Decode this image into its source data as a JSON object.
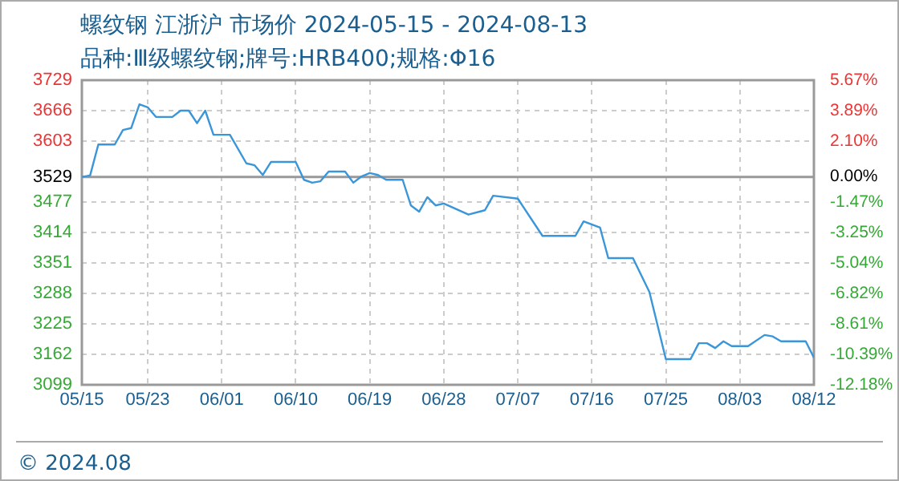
{
  "chart_data": {
    "type": "line",
    "title": "螺纹钢 江浙沪 市场价 2024-05-15 - 2024-08-13",
    "subtitle": "品种:Ⅲ级螺纹钢;牌号:HRB400;规格:Φ16",
    "annotations": [
      "© 2024.08"
    ],
    "x": [
      "2024-05-15",
      "2024-05-16",
      "2024-05-17",
      "2024-05-19",
      "2024-05-20",
      "2024-05-21",
      "2024-05-22",
      "2024-05-23",
      "2024-05-24",
      "2024-05-26",
      "2024-05-27",
      "2024-05-28",
      "2024-05-29",
      "2024-05-30",
      "2024-05-31",
      "2024-06-02",
      "2024-06-04",
      "2024-06-05",
      "2024-06-06",
      "2024-06-07",
      "2024-06-10",
      "2024-06-11",
      "2024-06-12",
      "2024-06-13",
      "2024-06-14",
      "2024-06-16",
      "2024-06-17",
      "2024-06-18",
      "2024-06-19",
      "2024-06-20",
      "2024-06-21",
      "2024-06-23",
      "2024-06-24",
      "2024-06-25",
      "2024-06-26",
      "2024-06-27",
      "2024-06-28",
      "2024-07-01",
      "2024-07-03",
      "2024-07-04",
      "2024-07-07",
      "2024-07-10",
      "2024-07-14",
      "2024-07-15",
      "2024-07-17",
      "2024-07-18",
      "2024-07-21",
      "2024-07-23",
      "2024-07-25",
      "2024-07-28",
      "2024-07-29",
      "2024-07-30",
      "2024-07-31",
      "2024-08-01",
      "2024-08-02",
      "2024-08-04",
      "2024-08-06",
      "2024-08-07",
      "2024-08-08",
      "2024-08-11",
      "2024-08-12"
    ],
    "series": [
      {
        "color": "#3a96d8",
        "values": [
          3529,
          3532,
          3596,
          3596,
          3626,
          3630,
          3679,
          3673,
          3653,
          3653,
          3666,
          3666,
          3640,
          3666,
          3616,
          3616,
          3557,
          3553,
          3533,
          3560,
          3560,
          3523,
          3517,
          3520,
          3540,
          3540,
          3517,
          3530,
          3537,
          3533,
          3523,
          3523,
          3470,
          3457,
          3487,
          3470,
          3474,
          3451,
          3460,
          3490,
          3484,
          3407,
          3407,
          3437,
          3424,
          3361,
          3361,
          3291,
          3152,
          3152,
          3185,
          3185,
          3175,
          3189,
          3179,
          3179,
          3202,
          3199,
          3189,
          3189,
          3155
        ]
      }
    ],
    "xlim": [
      "2024-05-15",
      "2024-08-12"
    ],
    "xticks": [
      {
        "value": "2024-05-15",
        "label": "05/15"
      },
      {
        "value": "2024-05-23",
        "label": "05/23"
      },
      {
        "value": "2024-06-01",
        "label": "06/01"
      },
      {
        "value": "2024-06-10",
        "label": "06/10"
      },
      {
        "value": "2024-06-19",
        "label": "06/19"
      },
      {
        "value": "2024-06-28",
        "label": "06/28"
      },
      {
        "value": "2024-07-07",
        "label": "07/07"
      },
      {
        "value": "2024-07-16",
        "label": "07/16"
      },
      {
        "value": "2024-07-25",
        "label": "07/25"
      },
      {
        "value": "2024-08-03",
        "label": "08/03"
      },
      {
        "value": "2024-08-12",
        "label": "08/12"
      }
    ],
    "ylim": [
      3099,
      3729
    ],
    "yticks": [
      3729,
      3666,
      3603,
      3529,
      3477,
      3414,
      3351,
      3288,
      3225,
      3162,
      3099
    ],
    "y2lim": [
      -12.18,
      5.67
    ],
    "y2ticks": [
      {
        "value": 5.67,
        "label": "5.67%"
      },
      {
        "value": 3.89,
        "label": "3.89%"
      },
      {
        "value": 2.1,
        "label": "2.10%"
      },
      {
        "value": 0,
        "label": "0.00%"
      },
      {
        "value": -1.47,
        "label": "-1.47%"
      },
      {
        "value": -3.25,
        "label": "-3.25%"
      },
      {
        "value": -5.04,
        "label": "-5.04%"
      },
      {
        "value": -6.82,
        "label": "-6.82%"
      },
      {
        "value": -8.61,
        "label": "-8.61%"
      },
      {
        "value": -10.39,
        "label": "-10.39%"
      },
      {
        "value": -12.18,
        "label": "-12.18%"
      }
    ],
    "ref_lines": [
      {
        "axis": "y",
        "value": 3529,
        "color": "#999999"
      }
    ],
    "grid": true,
    "legend": false,
    "marker": "none",
    "line_style": "solid"
  }
}
